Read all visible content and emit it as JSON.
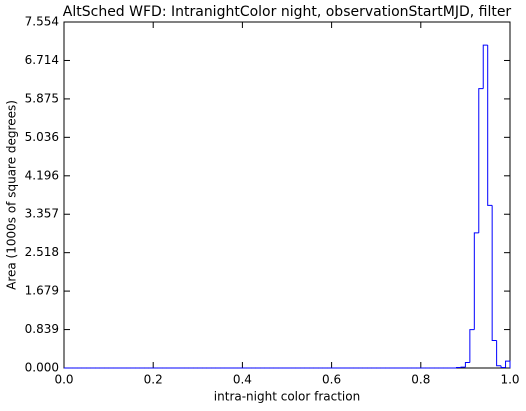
{
  "chart_data": {
    "type": "histogram",
    "title": "AltSched WFD: IntranightColor night, observationStartMJD, filter",
    "x_label": "intra-night color fraction",
    "y_label": "Area (1000s of square degrees)",
    "color": "#0000ff",
    "bins": [
      0,
      0.01,
      0.02,
      0.03,
      0.04,
      0.05,
      0.06,
      0.07,
      0.08,
      0.09,
      0.1,
      0.11,
      0.12,
      0.13,
      0.14,
      0.15,
      0.16,
      0.17,
      0.18,
      0.19,
      0.2,
      0.21,
      0.22,
      0.23,
      0.24,
      0.25,
      0.26,
      0.27,
      0.28,
      0.29,
      0.3,
      0.31,
      0.32,
      0.33,
      0.34,
      0.35,
      0.36,
      0.37,
      0.38,
      0.39,
      0.4,
      0.41,
      0.42,
      0.43,
      0.44,
      0.45,
      0.46,
      0.47,
      0.48,
      0.49,
      0.5,
      0.51,
      0.52,
      0.53,
      0.54,
      0.55,
      0.56,
      0.57,
      0.58,
      0.59,
      0.6,
      0.61,
      0.62,
      0.63,
      0.64,
      0.65,
      0.66,
      0.67,
      0.68,
      0.69,
      0.7,
      0.71,
      0.72,
      0.73,
      0.74,
      0.75,
      0.76,
      0.77,
      0.78,
      0.79,
      0.8,
      0.81,
      0.82,
      0.83,
      0.84,
      0.85,
      0.86,
      0.87,
      0.88,
      0.89,
      0.9,
      0.91,
      0.92,
      0.93,
      0.94,
      0.95,
      0.96,
      0.97,
      0.98,
      0.99,
      1
    ],
    "values": [
      0,
      0,
      0,
      0,
      0,
      0,
      0,
      0,
      0,
      0,
      0,
      0,
      0,
      0,
      0,
      0,
      0,
      0,
      0,
      0,
      0,
      0,
      0,
      0,
      0,
      0,
      0,
      0,
      0,
      0,
      0,
      0,
      0,
      0,
      0,
      0,
      0,
      0,
      0,
      0,
      0,
      0,
      0,
      0,
      0,
      0,
      0,
      0,
      0,
      0,
      0,
      0,
      0,
      0,
      0,
      0,
      0,
      0,
      0,
      0,
      0,
      0,
      0,
      0,
      0,
      0,
      0,
      0,
      0,
      0,
      0,
      0,
      0,
      0,
      0,
      0,
      0,
      0,
      0,
      0,
      0,
      0,
      0,
      0,
      0,
      0,
      0,
      0,
      0.01,
      0.02,
      0.12,
      0.839,
      2.95,
      6.1,
      7.05,
      3.55,
      0.6,
      0.05,
      0.01,
      0.15
    ],
    "xlim": [
      0,
      1
    ],
    "xticks": [
      {
        "value": 0,
        "label": "0.0"
      },
      0.2,
      0.4,
      0.6,
      0.8,
      {
        "value": 1,
        "label": "1.0"
      }
    ],
    "ylim": [
      0,
      7.554
    ],
    "yticks": [
      {
        "value": 0,
        "label": "0.000"
      },
      0.839,
      1.679,
      2.518,
      3.357,
      4.196,
      5.036,
      5.875,
      6.714,
      7.554
    ]
  }
}
